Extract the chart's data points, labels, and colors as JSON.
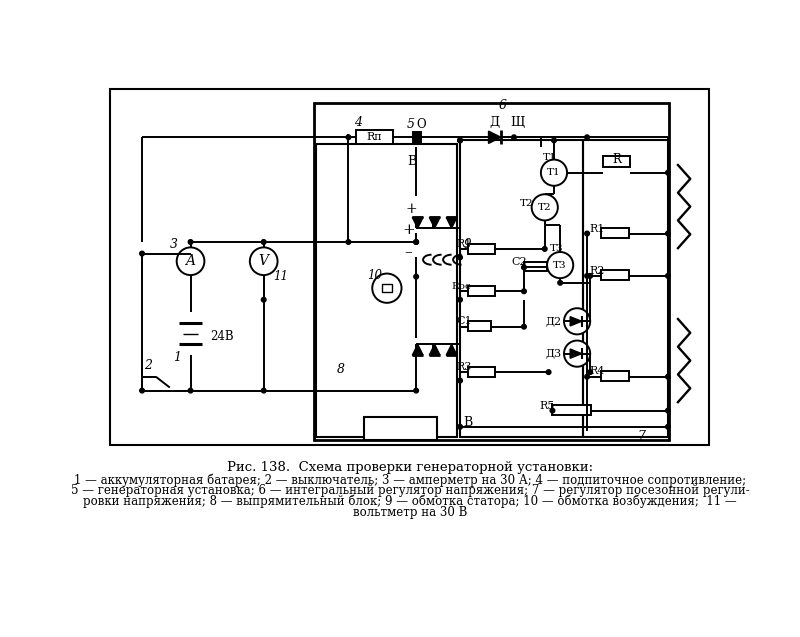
{
  "title": "Рис. 138.  Схема проверки генераторной установки:",
  "cap1": "1 — аккумуляторная батарея; 2 — выключатель; 3 — амперметр на 30 А; 4 — подпиточное сопротивление;",
  "cap2": "5 — генераторная установка; 6 — интегральный регулятор напряжения; 7 — регулятор посезонной регули-",
  "cap3": "ровки напряжения; 8 — выпрямительный блок; 9 — обмотка статора; 10 — обмотка возбуждения;  11 —",
  "cap4": "вольтметр на 30 В",
  "bg": "#ffffff",
  "lc": "#000000"
}
